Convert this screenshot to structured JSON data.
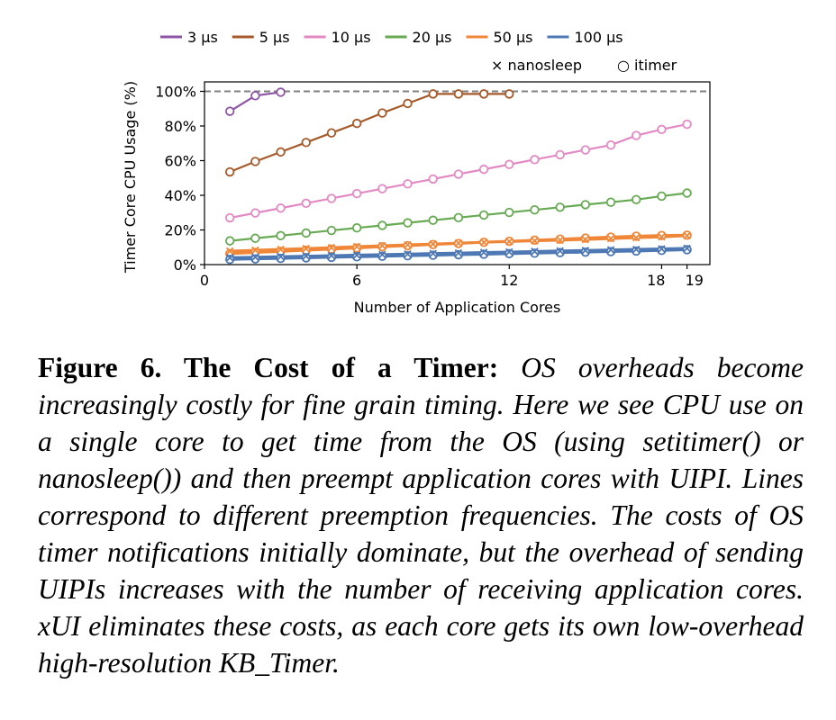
{
  "chart_data": {
    "type": "line",
    "xlabel": "Number of Application Cores",
    "ylabel": "Timer Core CPU Usage (%)",
    "xlim": [
      0,
      19.9
    ],
    "ylim": [
      0,
      100
    ],
    "x_ticks": [
      0,
      6,
      12,
      18,
      19
    ],
    "x_tick_labels": [
      "0",
      "6",
      "12",
      "18",
      "19"
    ],
    "y_ticks": [
      0,
      20,
      40,
      60,
      80,
      100
    ],
    "y_tick_labels": [
      "0%",
      "20%",
      "40%",
      "60%",
      "80%",
      "100%"
    ],
    "reference_line": {
      "y": 100,
      "style": "dashed",
      "color": "#808080"
    },
    "legend_position": "top",
    "marker_legend": [
      {
        "symbol": "×",
        "label": "nanosleep"
      },
      {
        "symbol": "○",
        "label": "itimer"
      }
    ],
    "series": [
      {
        "name": "3 μs",
        "color": "#8e55a6",
        "itimer": {
          "x": [
            1,
            2,
            3
          ],
          "y": [
            88.5,
            97.5,
            99.5
          ]
        },
        "nanosleep": null
      },
      {
        "name": "5 μs",
        "color": "#a65a2a",
        "itimer": {
          "x": [
            1,
            2,
            3,
            4,
            5,
            6,
            7,
            8,
            9,
            10,
            11,
            12
          ],
          "y": [
            53.5,
            59.5,
            65,
            70.5,
            76,
            81.5,
            87.5,
            93,
            98.5,
            98.5,
            98.5,
            98.5
          ]
        },
        "nanosleep": null
      },
      {
        "name": "10 μs",
        "color": "#e38ac4",
        "itimer": {
          "x": [
            1,
            2,
            3,
            4,
            5,
            6,
            7,
            8,
            9,
            10,
            11,
            12,
            13,
            14,
            15,
            16,
            17,
            18,
            19
          ],
          "y": [
            27,
            29.8,
            32.6,
            35.4,
            38.2,
            41,
            43.8,
            46.6,
            49.4,
            52.2,
            55,
            57.8,
            60.6,
            63.4,
            66.2,
            69,
            74.5,
            78,
            81
          ]
        },
        "nanosleep": null
      },
      {
        "name": "20 μs",
        "color": "#67aa53",
        "itimer": {
          "x": [
            1,
            2,
            3,
            4,
            5,
            6,
            7,
            8,
            9,
            10,
            11,
            12,
            13,
            14,
            15,
            16,
            17,
            18,
            19
          ],
          "y": [
            13.7,
            15.2,
            16.7,
            18.2,
            19.7,
            21.2,
            22.6,
            24.1,
            25.6,
            27.1,
            28.6,
            30.1,
            31.6,
            33.1,
            34.6,
            36,
            37.5,
            39.5,
            41.3
          ]
        },
        "nanosleep": null
      },
      {
        "name": "50 μs",
        "color": "#ef8638",
        "itimer": {
          "x": [
            1,
            2,
            3,
            4,
            5,
            6,
            7,
            8,
            9,
            10,
            11,
            12,
            13,
            14,
            15,
            16,
            17,
            18,
            19
          ],
          "y": [
            6.3,
            7,
            7.6,
            8.3,
            8.9,
            9.6,
            10.3,
            10.9,
            11.6,
            12.2,
            12.9,
            13.5,
            14.1,
            14.7,
            15.3,
            15.9,
            16.4,
            16.8,
            17
          ]
        },
        "nanosleep": {
          "x": [
            1,
            2,
            3,
            4,
            5,
            6,
            7,
            8,
            9,
            10,
            11,
            12,
            13,
            14,
            15,
            16,
            17,
            18,
            19
          ],
          "y": [
            7.8,
            8.3,
            8.8,
            9.3,
            9.8,
            10.4,
            10.9,
            11.4,
            11.9,
            12.4,
            12.9,
            13.3,
            13.7,
            14.1,
            14.5,
            15,
            15.5,
            16,
            16.7
          ]
        }
      },
      {
        "name": "100 μs",
        "color": "#4e78b3",
        "itimer": {
          "x": [
            1,
            2,
            3,
            4,
            5,
            6,
            7,
            8,
            9,
            10,
            11,
            12,
            13,
            14,
            15,
            16,
            17,
            18,
            19
          ],
          "y": [
            3,
            3.3,
            3.6,
            3.9,
            4.2,
            4.5,
            4.8,
            5.1,
            5.4,
            5.7,
            6,
            6.3,
            6.6,
            6.9,
            7.2,
            7.5,
            7.8,
            8.2,
            8.6
          ]
        },
        "nanosleep": {
          "x": [
            1,
            2,
            3,
            4,
            5,
            6,
            7,
            8,
            9,
            10,
            11,
            12,
            13,
            14,
            15,
            16,
            17,
            18,
            19
          ],
          "y": [
            4,
            4.3,
            4.6,
            4.9,
            5.2,
            5.5,
            5.8,
            6.1,
            6.4,
            6.7,
            7,
            7.3,
            7.6,
            7.9,
            8.2,
            8.5,
            8.8,
            9.1,
            9.4
          ]
        }
      }
    ]
  },
  "caption": {
    "label": "Figure 6. The Cost of a Timer:",
    "text": "OS overheads become increasingly costly for fine grain timing. Here we see CPU use on a single core to get time from the OS (using setitimer() or nanosleep()) and then preempt application cores with UIPI. Lines correspond to different preemption frequencies. The costs of OS timer notifications initially dominate, but the overhead of sending UIPIs increases with the number of receiving application cores. xUI eliminates these costs, as each core gets its own low-overhead high-resolution KB_Timer."
  }
}
